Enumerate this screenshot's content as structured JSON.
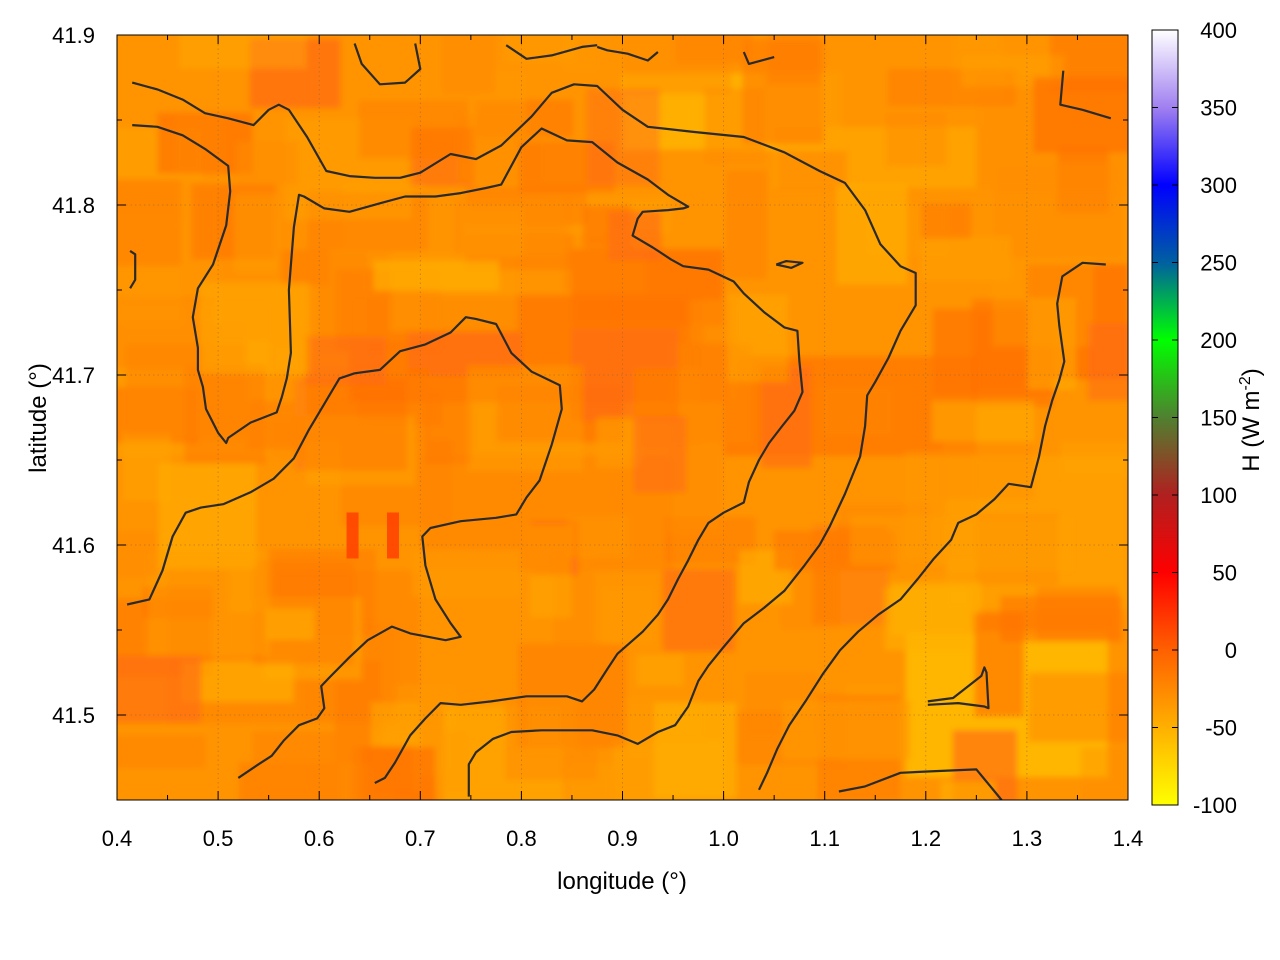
{
  "chart_data": {
    "type": "heatmap",
    "title": "",
    "xlabel": "longitude (°)",
    "ylabel": "latitude (°)",
    "colorbar_label": "H (W m-2)",
    "colorbar_label_parts": {
      "base": "H (W m",
      "sup": "-2",
      "end": ")"
    },
    "xlim": [
      0.4,
      1.4
    ],
    "ylim": [
      41.45,
      41.9
    ],
    "x_ticks": [
      "0.4",
      "0.5",
      "0.6",
      "0.7",
      "0.8",
      "0.9",
      "1.0",
      "1.1",
      "1.2",
      "1.3",
      "1.4"
    ],
    "y_ticks": [
      "41.5",
      "41.6",
      "41.7",
      "41.8",
      "41.9"
    ],
    "y_tick_values": [
      41.5,
      41.6,
      41.7,
      41.8,
      41.9
    ],
    "grid": true,
    "colorbar": {
      "range": [
        -100,
        400
      ],
      "ticks": [
        "400",
        "350",
        "300",
        "250",
        "200",
        "150",
        "100",
        "50",
        "0",
        "-50",
        "-100"
      ],
      "tick_values": [
        400,
        350,
        300,
        250,
        200,
        150,
        100,
        50,
        0,
        -50,
        -100
      ],
      "stops": [
        {
          "value": -100,
          "color": "#ffff00"
        },
        {
          "value": -50,
          "color": "#ffb000"
        },
        {
          "value": 0,
          "color": "#ff6000"
        },
        {
          "value": 50,
          "color": "#ff0000"
        },
        {
          "value": 100,
          "color": "#b02020"
        },
        {
          "value": 150,
          "color": "#508030"
        },
        {
          "value": 200,
          "color": "#00ff00"
        },
        {
          "value": 250,
          "color": "#0060a0"
        },
        {
          "value": 300,
          "color": "#0000ff"
        },
        {
          "value": 350,
          "color": "#a080f0"
        },
        {
          "value": 400,
          "color": "#ffffff"
        }
      ]
    },
    "hotspots": [
      {
        "lon": 0.633,
        "lat": 41.605,
        "value": 15
      },
      {
        "lon": 0.673,
        "lat": 41.605,
        "value": 20
      }
    ],
    "contour_color": "#2a2a2a",
    "contours": [
      [
        [
          0.415,
          41.872
        ],
        [
          0.44,
          41.868
        ],
        [
          0.465,
          41.862
        ],
        [
          0.487,
          41.854
        ],
        [
          0.51,
          41.851
        ],
        [
          0.535,
          41.847
        ],
        [
          0.55,
          41.856
        ],
        [
          0.56,
          41.859
        ],
        [
          0.57,
          41.856
        ],
        [
          0.588,
          41.84
        ],
        [
          0.607,
          41.82
        ],
        [
          0.63,
          41.817
        ],
        [
          0.655,
          41.816
        ],
        [
          0.68,
          41.816
        ],
        [
          0.7,
          41.819
        ],
        [
          0.73,
          41.83
        ],
        [
          0.755,
          41.827
        ],
        [
          0.78,
          41.835
        ],
        [
          0.81,
          41.852
        ],
        [
          0.83,
          41.866
        ],
        [
          0.852,
          41.871
        ],
        [
          0.875,
          41.87
        ],
        [
          0.9,
          41.856
        ],
        [
          0.925,
          41.846
        ],
        [
          0.97,
          41.843
        ],
        [
          1.02,
          41.84
        ],
        [
          1.06,
          41.831
        ],
        [
          1.095,
          41.82
        ],
        [
          1.12,
          41.813
        ],
        [
          1.14,
          41.797
        ],
        [
          1.155,
          41.777
        ],
        [
          1.175,
          41.764
        ],
        [
          1.19,
          41.76
        ],
        [
          1.19,
          41.741
        ],
        [
          1.175,
          41.726
        ],
        [
          1.163,
          41.71
        ],
        [
          1.15,
          41.696
        ],
        [
          1.142,
          41.688
        ],
        [
          1.14,
          41.67
        ],
        [
          1.135,
          41.652
        ],
        [
          1.12,
          41.63
        ],
        [
          1.105,
          41.611
        ],
        [
          1.095,
          41.6
        ],
        [
          1.08,
          41.588
        ],
        [
          1.06,
          41.573
        ],
        [
          1.04,
          41.563
        ],
        [
          1.02,
          41.554
        ],
        [
          1.0,
          41.54
        ],
        [
          0.985,
          41.529
        ],
        [
          0.975,
          41.52
        ],
        [
          0.965,
          41.505
        ],
        [
          0.952,
          41.494
        ],
        [
          0.935,
          41.49
        ],
        [
          0.915,
          41.483
        ],
        [
          0.895,
          41.488
        ],
        [
          0.87,
          41.491
        ],
        [
          0.845,
          41.491
        ],
        [
          0.82,
          41.491
        ],
        [
          0.79,
          41.49
        ],
        [
          0.772,
          41.486
        ],
        [
          0.755,
          41.478
        ],
        [
          0.748,
          41.471
        ],
        [
          0.748,
          41.452
        ]
      ],
      [
        [
          0.415,
          41.847
        ],
        [
          0.44,
          41.846
        ],
        [
          0.465,
          41.841
        ],
        [
          0.487,
          41.833
        ],
        [
          0.51,
          41.823
        ],
        [
          0.512,
          41.808
        ],
        [
          0.508,
          41.788
        ],
        [
          0.495,
          41.765
        ],
        [
          0.48,
          41.751
        ],
        [
          0.475,
          41.734
        ],
        [
          0.48,
          41.716
        ],
        [
          0.48,
          41.703
        ],
        [
          0.485,
          41.693
        ],
        [
          0.488,
          41.68
        ],
        [
          0.5,
          41.666
        ],
        [
          0.508,
          41.66
        ],
        [
          0.51,
          41.663
        ],
        [
          0.532,
          41.672
        ],
        [
          0.558,
          41.678
        ],
        [
          0.563,
          41.687
        ],
        [
          0.568,
          41.698
        ],
        [
          0.572,
          41.713
        ],
        [
          0.57,
          41.75
        ],
        [
          0.575,
          41.787
        ],
        [
          0.58,
          41.806
        ],
        [
          0.585,
          41.805
        ],
        [
          0.605,
          41.798
        ],
        [
          0.63,
          41.796
        ],
        [
          0.66,
          41.801
        ],
        [
          0.685,
          41.805
        ],
        [
          0.715,
          41.805
        ],
        [
          0.74,
          41.807
        ],
        [
          0.765,
          41.81
        ],
        [
          0.78,
          41.812
        ],
        [
          0.8,
          41.834
        ],
        [
          0.82,
          41.845
        ],
        [
          0.845,
          41.838
        ],
        [
          0.87,
          41.837
        ],
        [
          0.895,
          41.825
        ],
        [
          0.925,
          41.815
        ],
        [
          0.945,
          41.806
        ],
        [
          0.965,
          41.799
        ],
        [
          0.96,
          41.798
        ],
        [
          0.945,
          41.797
        ],
        [
          0.92,
          41.796
        ],
        [
          0.915,
          41.792
        ],
        [
          0.91,
          41.782
        ],
        [
          0.93,
          41.775
        ],
        [
          0.948,
          41.768
        ],
        [
          0.96,
          41.764
        ],
        [
          0.985,
          41.762
        ],
        [
          1.01,
          41.755
        ],
        [
          1.02,
          41.748
        ],
        [
          1.04,
          41.737
        ],
        [
          1.06,
          41.728
        ],
        [
          1.073,
          41.726
        ],
        [
          1.075,
          41.708
        ],
        [
          1.078,
          41.69
        ],
        [
          1.07,
          41.679
        ],
        [
          1.058,
          41.67
        ],
        [
          1.045,
          41.66
        ],
        [
          1.035,
          41.65
        ],
        [
          1.025,
          41.637
        ],
        [
          1.02,
          41.625
        ],
        [
          1.0,
          41.619
        ],
        [
          0.985,
          41.613
        ],
        [
          0.975,
          41.603
        ],
        [
          0.965,
          41.591
        ],
        [
          0.955,
          41.58
        ],
        [
          0.945,
          41.568
        ],
        [
          0.935,
          41.559
        ],
        [
          0.92,
          41.549
        ],
        [
          0.895,
          41.536
        ],
        [
          0.885,
          41.527
        ],
        [
          0.872,
          41.515
        ],
        [
          0.86,
          41.508
        ],
        [
          0.845,
          41.511
        ],
        [
          0.805,
          41.511
        ],
        [
          0.77,
          41.508
        ],
        [
          0.74,
          41.506
        ],
        [
          0.72,
          41.507
        ],
        [
          0.705,
          41.498
        ],
        [
          0.69,
          41.488
        ],
        [
          0.675,
          41.472
        ],
        [
          0.665,
          41.463
        ],
        [
          0.655,
          41.46
        ]
      ],
      [
        [
          0.41,
          41.565
        ],
        [
          0.432,
          41.568
        ],
        [
          0.445,
          41.585
        ],
        [
          0.455,
          41.605
        ],
        [
          0.468,
          41.619
        ],
        [
          0.483,
          41.622
        ],
        [
          0.505,
          41.624
        ],
        [
          0.532,
          41.631
        ],
        [
          0.555,
          41.639
        ],
        [
          0.575,
          41.651
        ],
        [
          0.59,
          41.668
        ],
        [
          0.605,
          41.683
        ],
        [
          0.62,
          41.698
        ],
        [
          0.635,
          41.701
        ],
        [
          0.66,
          41.703
        ],
        [
          0.68,
          41.714
        ],
        [
          0.705,
          41.718
        ],
        [
          0.73,
          41.725
        ],
        [
          0.745,
          41.734
        ],
        [
          0.755,
          41.733
        ],
        [
          0.775,
          41.73
        ],
        [
          0.79,
          41.713
        ],
        [
          0.81,
          41.702
        ],
        [
          0.838,
          41.694
        ],
        [
          0.84,
          41.68
        ],
        [
          0.83,
          41.659
        ],
        [
          0.818,
          41.638
        ],
        [
          0.805,
          41.628
        ],
        [
          0.795,
          41.618
        ],
        [
          0.775,
          41.616
        ],
        [
          0.74,
          41.614
        ],
        [
          0.71,
          41.61
        ],
        [
          0.702,
          41.605
        ],
        [
          0.705,
          41.588
        ],
        [
          0.715,
          41.568
        ],
        [
          0.73,
          41.554
        ],
        [
          0.74,
          41.546
        ],
        [
          0.725,
          41.544
        ],
        [
          0.69,
          41.548
        ],
        [
          0.672,
          41.552
        ],
        [
          0.648,
          41.544
        ],
        [
          0.63,
          41.534
        ],
        [
          0.61,
          41.522
        ],
        [
          0.602,
          41.517
        ],
        [
          0.605,
          41.504
        ],
        [
          0.598,
          41.498
        ],
        [
          0.58,
          41.494
        ],
        [
          0.565,
          41.485
        ],
        [
          0.553,
          41.476
        ],
        [
          0.54,
          41.471
        ],
        [
          0.52,
          41.463
        ]
      ],
      [
        [
          0.635,
          41.895
        ],
        [
          0.642,
          41.883
        ],
        [
          0.66,
          41.871
        ],
        [
          0.685,
          41.872
        ],
        [
          0.7,
          41.88
        ],
        [
          0.695,
          41.895
        ]
      ],
      [
        [
          0.785,
          41.894
        ],
        [
          0.805,
          41.886
        ],
        [
          0.83,
          41.888
        ],
        [
          0.86,
          41.893
        ],
        [
          0.875,
          41.894
        ]
      ],
      [
        [
          0.875,
          41.893
        ],
        [
          0.885,
          41.891
        ],
        [
          0.905,
          41.889
        ],
        [
          0.925,
          41.885
        ],
        [
          0.935,
          41.89
        ]
      ],
      [
        [
          1.02,
          41.89
        ],
        [
          1.025,
          41.883
        ],
        [
          1.05,
          41.887
        ]
      ],
      [
        [
          1.336,
          41.879
        ],
        [
          1.333,
          41.859
        ],
        [
          1.355,
          41.856
        ],
        [
          1.383,
          41.851
        ]
      ],
      [
        [
          1.378,
          41.765
        ],
        [
          1.355,
          41.766
        ],
        [
          1.335,
          41.758
        ],
        [
          1.33,
          41.742
        ],
        [
          1.332,
          41.729
        ],
        [
          1.337,
          41.708
        ],
        [
          1.332,
          41.697
        ],
        [
          1.325,
          41.685
        ],
        [
          1.318,
          41.67
        ],
        [
          1.312,
          41.652
        ],
        [
          1.304,
          41.634
        ],
        [
          1.282,
          41.636
        ],
        [
          1.268,
          41.627
        ],
        [
          1.25,
          41.618
        ],
        [
          1.232,
          41.613
        ],
        [
          1.225,
          41.603
        ],
        [
          1.208,
          41.592
        ],
        [
          1.192,
          41.58
        ],
        [
          1.175,
          41.568
        ],
        [
          1.153,
          41.559
        ],
        [
          1.133,
          41.549
        ],
        [
          1.115,
          41.538
        ],
        [
          1.098,
          41.524
        ],
        [
          1.082,
          41.509
        ],
        [
          1.065,
          41.494
        ],
        [
          1.053,
          41.48
        ],
        [
          1.043,
          41.466
        ],
        [
          1.035,
          41.456
        ]
      ],
      [
        [
          1.114,
          41.455
        ],
        [
          1.14,
          41.458
        ],
        [
          1.175,
          41.466
        ],
        [
          1.21,
          41.467
        ],
        [
          1.25,
          41.468
        ],
        [
          1.275,
          41.45
        ]
      ],
      [
        [
          1.202,
          41.508
        ],
        [
          1.227,
          41.51
        ],
        [
          1.255,
          41.523
        ],
        [
          1.258,
          41.528
        ],
        [
          1.26,
          41.525
        ],
        [
          1.262,
          41.504
        ],
        [
          1.258,
          41.505
        ],
        [
          1.232,
          41.507
        ],
        [
          1.202,
          41.506
        ]
      ],
      [
        [
          1.052,
          41.765
        ],
        [
          1.062,
          41.767
        ],
        [
          1.078,
          41.766
        ],
        [
          1.067,
          41.763
        ],
        [
          1.052,
          41.765
        ]
      ],
      [
        [
          0.413,
          41.773
        ],
        [
          0.418,
          41.771
        ],
        [
          0.418,
          41.756
        ],
        [
          0.413,
          41.751
        ]
      ]
    ]
  }
}
